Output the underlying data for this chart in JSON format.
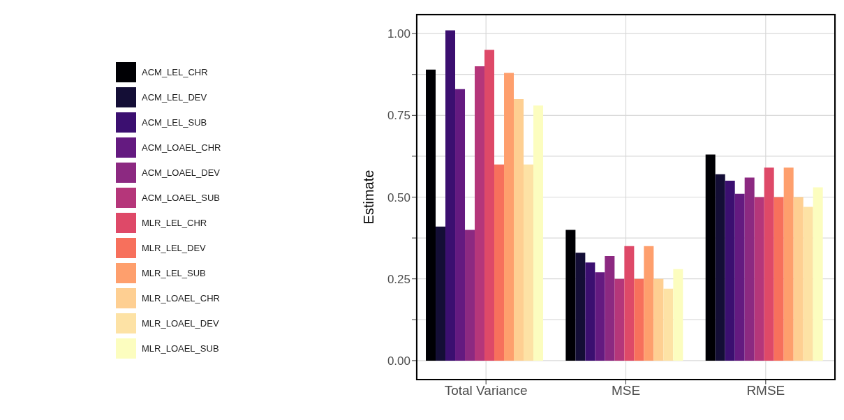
{
  "chart_data": {
    "type": "bar",
    "ylabel": "Estimate",
    "categories": [
      "Total Variance",
      "MSE",
      "RMSE"
    ],
    "series": [
      {
        "name": "ACM_LEL_CHR",
        "color": "#000004",
        "values": [
          0.89,
          0.4,
          0.63
        ]
      },
      {
        "name": "ACM_LEL_DEV",
        "color": "#140e36",
        "values": [
          0.41,
          0.33,
          0.57
        ]
      },
      {
        "name": "ACM_LEL_SUB",
        "color": "#3b0f70",
        "values": [
          1.01,
          0.3,
          0.55
        ]
      },
      {
        "name": "ACM_LOAEL_CHR",
        "color": "#641a80",
        "values": [
          0.83,
          0.27,
          0.51
        ]
      },
      {
        "name": "ACM_LOAEL_DEV",
        "color": "#8c2981",
        "values": [
          0.4,
          0.32,
          0.56
        ]
      },
      {
        "name": "ACM_LOAEL_SUB",
        "color": "#b5367a",
        "values": [
          0.9,
          0.25,
          0.5
        ]
      },
      {
        "name": "MLR_LEL_CHR",
        "color": "#de4968",
        "values": [
          0.95,
          0.35,
          0.59
        ]
      },
      {
        "name": "MLR_LEL_DEV",
        "color": "#f7705c",
        "values": [
          0.6,
          0.25,
          0.5
        ]
      },
      {
        "name": "MLR_LEL_SUB",
        "color": "#fe9f6d",
        "values": [
          0.88,
          0.35,
          0.59
        ]
      },
      {
        "name": "MLR_LOAEL_CHR",
        "color": "#fecf92",
        "values": [
          0.8,
          0.25,
          0.5
        ]
      },
      {
        "name": "MLR_LOAEL_DEV",
        "color": "#fde2a5",
        "values": [
          0.6,
          0.22,
          0.47
        ]
      },
      {
        "name": "MLR_LOAEL_SUB",
        "color": "#fcfdbf",
        "values": [
          0.78,
          0.28,
          0.53
        ]
      }
    ],
    "ylim": [
      -0.06,
      1.06
    ],
    "yticks": [
      {
        "value": 0,
        "label": "0.00"
      },
      {
        "value": 0.125,
        "label": null
      },
      {
        "value": 0.25,
        "label": "0.25"
      },
      {
        "value": 0.375,
        "label": null
      },
      {
        "value": 0.5,
        "label": "0.50"
      },
      {
        "value": 0.625,
        "label": null
      },
      {
        "value": 0.75,
        "label": "0.75"
      },
      {
        "value": 0.875,
        "label": null
      },
      {
        "value": 1,
        "label": "1.00"
      }
    ],
    "grid": true,
    "legend": "left"
  }
}
